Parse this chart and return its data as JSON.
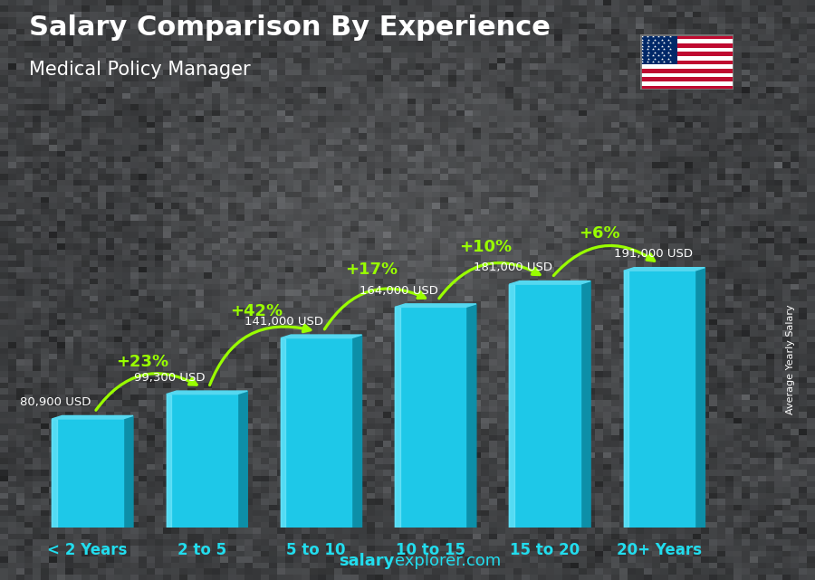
{
  "title": "Salary Comparison By Experience",
  "subtitle": "Medical Policy Manager",
  "categories": [
    "< 2 Years",
    "2 to 5",
    "5 to 10",
    "10 to 15",
    "15 to 20",
    "20+ Years"
  ],
  "values": [
    80900,
    99300,
    141000,
    164000,
    181000,
    191000
  ],
  "salary_labels": [
    "80,900 USD",
    "99,300 USD",
    "141,000 USD",
    "164,000 USD",
    "181,000 USD",
    "191,000 USD"
  ],
  "pct_changes": [
    "+23%",
    "+42%",
    "+17%",
    "+10%",
    "+6%"
  ],
  "bar_face_color": "#1EC8E8",
  "bar_right_color": "#0D8FA8",
  "bar_top_color": "#55D8F0",
  "bar_highlight_color": "#88EEFF",
  "bg_color": "#3a3f47",
  "title_color": "#FFFFFF",
  "subtitle_color": "#FFFFFF",
  "salary_label_color": "#FFFFFF",
  "pct_color": "#99FF00",
  "xticklabel_color": "#22DDEE",
  "footer_bold_color": "#22DDEE",
  "footer_normal_color": "#22DDEE",
  "ylabel_color": "#FFFFFF",
  "ylim": [
    0,
    250000
  ],
  "bar_width": 0.62,
  "dx3d": 0.09,
  "dy3d": 6000
}
